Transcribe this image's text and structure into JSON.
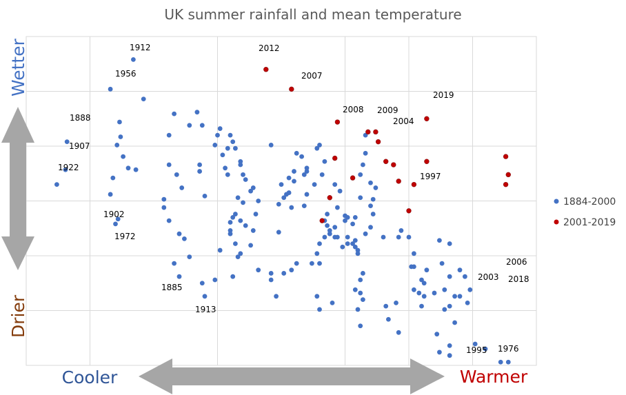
{
  "chart_data": {
    "type": "scatter",
    "title": "UK summer rainfall and mean temperature",
    "xlabel_left": "Cooler",
    "xlabel_right": "Warmer",
    "ylabel_top": "Wetter",
    "ylabel_bottom": "Drier",
    "xlim": [
      0,
      100
    ],
    "ylim": [
      0,
      100
    ],
    "grid": true,
    "legend_position": "right",
    "colors": {
      "series1": "#4472C4",
      "series2": "#C00000",
      "cooler": "#2F5597",
      "warmer": "#C00000",
      "wetter": "#4472C4",
      "drier": "#843C0C",
      "arrow": "#A6A6A6",
      "grid": "#D9D9D9",
      "title": "#595959"
    },
    "series": [
      {
        "name": "1884-2000",
        "points": [
          [
            6,
            55
          ],
          [
            8,
            68
          ],
          [
            7.7,
            59.5
          ],
          [
            17,
            57
          ],
          [
            16.5,
            52
          ],
          [
            17.5,
            43
          ],
          [
            18,
            44.5
          ],
          [
            19,
            63.5
          ],
          [
            18.5,
            69.5
          ],
          [
            18.3,
            74
          ],
          [
            17.8,
            67
          ],
          [
            20,
            60
          ],
          [
            21.5,
            59.5
          ],
          [
            16.5,
            84
          ],
          [
            21,
            93
          ],
          [
            23,
            81
          ],
          [
            29,
            76.5
          ],
          [
            28,
            70
          ],
          [
            29.5,
            58
          ],
          [
            30.5,
            54
          ],
          [
            32,
            73
          ],
          [
            34.5,
            73
          ],
          [
            33.5,
            77
          ],
          [
            34,
            61
          ],
          [
            35,
            51.5
          ],
          [
            37,
            67
          ],
          [
            38.5,
            64
          ],
          [
            39.5,
            58
          ],
          [
            39,
            60
          ],
          [
            37.5,
            70
          ],
          [
            39.5,
            66
          ],
          [
            40.5,
            68
          ],
          [
            41,
            66
          ],
          [
            40,
            70
          ],
          [
            42,
            62
          ],
          [
            42.5,
            58
          ],
          [
            41.5,
            51
          ],
          [
            42.5,
            49.5
          ],
          [
            41,
            46
          ],
          [
            40,
            40
          ],
          [
            38,
            35
          ],
          [
            37,
            26
          ],
          [
            35,
            21
          ],
          [
            34.5,
            25
          ],
          [
            32,
            33
          ],
          [
            31,
            38.5
          ],
          [
            30,
            40
          ],
          [
            29,
            31
          ],
          [
            30,
            27
          ],
          [
            28,
            44
          ],
          [
            28,
            61
          ],
          [
            27,
            48
          ],
          [
            27,
            50.5
          ],
          [
            38,
            72
          ],
          [
            34,
            59
          ],
          [
            40,
            43.5
          ],
          [
            40.5,
            45
          ],
          [
            43,
            42.5
          ],
          [
            42,
            44
          ],
          [
            42,
            34
          ],
          [
            41,
            37
          ],
          [
            40,
            41
          ],
          [
            44.5,
            41
          ],
          [
            45.5,
            50
          ],
          [
            44.5,
            54
          ],
          [
            43,
            56.5
          ],
          [
            42,
            61
          ],
          [
            48,
            67
          ],
          [
            50,
            55
          ],
          [
            50.5,
            51
          ],
          [
            51.5,
            52.5
          ],
          [
            52,
            48
          ],
          [
            51,
            52
          ],
          [
            49.5,
            49
          ],
          [
            49.5,
            40.5
          ],
          [
            44,
            36.5
          ],
          [
            41.5,
            33
          ],
          [
            40.5,
            27
          ],
          [
            44,
            53
          ],
          [
            45,
            46
          ],
          [
            48,
            26
          ],
          [
            48,
            28
          ],
          [
            45.5,
            29
          ],
          [
            49,
            21
          ],
          [
            51.5,
            57
          ],
          [
            52.5,
            59
          ],
          [
            53,
            64.5
          ],
          [
            55,
            60
          ],
          [
            54.5,
            58
          ],
          [
            56.5,
            55
          ],
          [
            55,
            59
          ],
          [
            54,
            63.5
          ],
          [
            52.5,
            56
          ],
          [
            58,
            58
          ],
          [
            58.5,
            62
          ],
          [
            57.5,
            67
          ],
          [
            57,
            66
          ],
          [
            54.5,
            48.5
          ],
          [
            55,
            52
          ],
          [
            58.5,
            44
          ],
          [
            59.5,
            41
          ],
          [
            59,
            46
          ],
          [
            59,
            42.5
          ],
          [
            57.5,
            37
          ],
          [
            58.5,
            39
          ],
          [
            57,
            34
          ],
          [
            59.5,
            40
          ],
          [
            60.5,
            42
          ],
          [
            62.5,
            44
          ],
          [
            61,
            48
          ],
          [
            62.5,
            45.5
          ],
          [
            63,
            45
          ],
          [
            61.5,
            53
          ],
          [
            60.5,
            55
          ],
          [
            63,
            39
          ],
          [
            63,
            37
          ],
          [
            64,
            37
          ],
          [
            64.5,
            36
          ],
          [
            65,
            34
          ],
          [
            64.5,
            38
          ],
          [
            62,
            36
          ],
          [
            60.5,
            39
          ],
          [
            57.5,
            31
          ],
          [
            56,
            31
          ],
          [
            53,
            31
          ],
          [
            52,
            29
          ],
          [
            50.5,
            28
          ],
          [
            57,
            21
          ],
          [
            57.5,
            17
          ],
          [
            60,
            19
          ],
          [
            64,
            43
          ],
          [
            61,
            39
          ],
          [
            64.5,
            45
          ],
          [
            65.5,
            51
          ],
          [
            65.5,
            58
          ],
          [
            66,
            61
          ],
          [
            66.5,
            70
          ],
          [
            66.5,
            64.5
          ],
          [
            67.5,
            55.5
          ],
          [
            68.5,
            54
          ],
          [
            68,
            50.5
          ],
          [
            67.5,
            48.5
          ],
          [
            68,
            46
          ],
          [
            67.5,
            42
          ],
          [
            66.5,
            40
          ],
          [
            65,
            35
          ],
          [
            66,
            28
          ],
          [
            65.5,
            26
          ],
          [
            64.5,
            23
          ],
          [
            65,
            17
          ],
          [
            65.5,
            12
          ],
          [
            70,
            39
          ],
          [
            73,
            39
          ],
          [
            73.5,
            41
          ],
          [
            75,
            39
          ],
          [
            76,
            34
          ],
          [
            75.5,
            30
          ],
          [
            77.5,
            26
          ],
          [
            78,
            25
          ],
          [
            78.5,
            29
          ],
          [
            81,
            38
          ],
          [
            83,
            37
          ],
          [
            81.5,
            31
          ],
          [
            76,
            30
          ],
          [
            76,
            23
          ],
          [
            77,
            22
          ],
          [
            77.5,
            18
          ],
          [
            73,
            10
          ],
          [
            78,
            21
          ],
          [
            80,
            22
          ],
          [
            82,
            17
          ],
          [
            85,
            21
          ],
          [
            87,
            23
          ],
          [
            83,
            27
          ],
          [
            82,
            23
          ],
          [
            83,
            18
          ],
          [
            84,
            21
          ],
          [
            72.5,
            19
          ],
          [
            71,
            14
          ],
          [
            70.5,
            18
          ],
          [
            65.5,
            22
          ],
          [
            66,
            20
          ],
          [
            85,
            29
          ],
          [
            86,
            27
          ],
          [
            86.5,
            19
          ],
          [
            84,
            13
          ],
          [
            80.5,
            9.5
          ],
          [
            88,
            6.5
          ],
          [
            90,
            5
          ],
          [
            93,
            1
          ],
          [
            94.5,
            1
          ],
          [
            83,
            6
          ],
          [
            81,
            4
          ],
          [
            83,
            3
          ]
        ]
      },
      {
        "name": "2001-2019",
        "points": [
          [
            47,
            90
          ],
          [
            52,
            84
          ],
          [
            61,
            74
          ],
          [
            67,
            71
          ],
          [
            69,
            68
          ],
          [
            68.5,
            71
          ],
          [
            60.5,
            63
          ],
          [
            70.5,
            62
          ],
          [
            72,
            61
          ],
          [
            78.5,
            75
          ],
          [
            73,
            56
          ],
          [
            76,
            55
          ],
          [
            75,
            47
          ],
          [
            64,
            57
          ],
          [
            59.5,
            51
          ],
          [
            58,
            44
          ],
          [
            78.5,
            62
          ],
          [
            94,
            63.5
          ],
          [
            94,
            55
          ],
          [
            94.5,
            58
          ]
        ]
      }
    ],
    "point_labels": [
      {
        "year": "1912"
      },
      {
        "year": "1956"
      },
      {
        "year": "2012"
      },
      {
        "year": "2007"
      },
      {
        "year": "2019"
      },
      {
        "year": "1888"
      },
      {
        "year": "2008"
      },
      {
        "year": "2009"
      },
      {
        "year": "2004"
      },
      {
        "year": "1907"
      },
      {
        "year": "1922"
      },
      {
        "year": "1997"
      },
      {
        "year": "1902"
      },
      {
        "year": "1972"
      },
      {
        "year": "2006"
      },
      {
        "year": "2003"
      },
      {
        "year": "2018"
      },
      {
        "year": "1885"
      },
      {
        "year": "1913"
      },
      {
        "year": "1995"
      },
      {
        "year": "1976"
      }
    ]
  }
}
